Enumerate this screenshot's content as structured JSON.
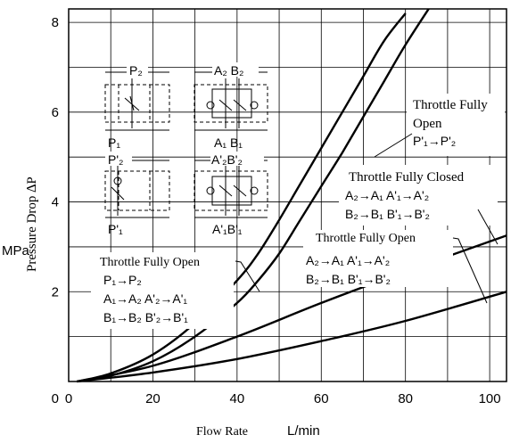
{
  "chart_data": {
    "type": "line",
    "xlabel": "Flow Rate",
    "xunit": "L/min",
    "ylabel": "Pressure Drop ∆P",
    "yunit": "MPa",
    "xlim": [
      0,
      104
    ],
    "ylim": [
      0,
      8.3
    ],
    "xticks": [
      "0",
      "20",
      "40",
      "60",
      "80",
      "100"
    ],
    "yticks": [
      "2",
      "4",
      "6",
      "8"
    ],
    "grid": true,
    "series": [
      {
        "x": [
          2,
          10,
          20,
          30,
          40,
          45,
          50,
          55,
          60,
          65,
          70,
          75,
          80
        ],
        "y": [
          0,
          0.18,
          0.6,
          1.3,
          2.25,
          2.85,
          3.6,
          4.4,
          5.2,
          6.0,
          6.8,
          7.6,
          8.2
        ]
      },
      {
        "x": [
          2,
          10,
          20,
          30,
          40,
          45,
          50,
          55,
          60,
          65,
          70,
          75,
          80,
          85.5
        ],
        "y": [
          0,
          0.13,
          0.45,
          1.0,
          1.75,
          2.25,
          2.85,
          3.6,
          4.35,
          5.1,
          5.9,
          6.7,
          7.5,
          8.3
        ]
      },
      {
        "x": [
          2,
          20,
          40,
          60,
          80,
          104
        ],
        "y": [
          0,
          0.35,
          1.0,
          1.75,
          2.45,
          3.25
        ]
      },
      {
        "x": [
          2,
          20,
          40,
          60,
          80,
          104
        ],
        "y": [
          0,
          0.2,
          0.5,
          0.9,
          1.35,
          2.0
        ]
      }
    ],
    "annotations": {
      "upper_right": {
        "line1": "Throttle Fully",
        "line2": "Open",
        "line3": "P'₁→P'₂"
      },
      "closed": {
        "title": "Throttle Fully Closed",
        "line1": "A₂→A₁  A'₁→A'₂",
        "line2": "B₂→B₁  B'₁→B'₂"
      },
      "lower_right": {
        "title": "Throttle Fully Open",
        "line1": "A₂→A₁  A'₁→A'₂",
        "line2": "B₂→B₁  B'₁→B'₂"
      },
      "lower_left": {
        "title": "Throttle Fully Open",
        "line1": "P₁→P₂",
        "line2": "A₁→A₂  A'₂→A'₁",
        "line3": "B₁→B₂  B'₂→B'₁"
      }
    },
    "symbols": {
      "p2": "P₂",
      "p1": "P₁",
      "pp2": "P'₂",
      "pp1": "P'₁",
      "a2b2": "A₂ B₂",
      "a1b1": "A₁ B₁",
      "aa2bb2": "A'₂B'₂",
      "aa1bb1": "A'₁B'₁"
    }
  }
}
